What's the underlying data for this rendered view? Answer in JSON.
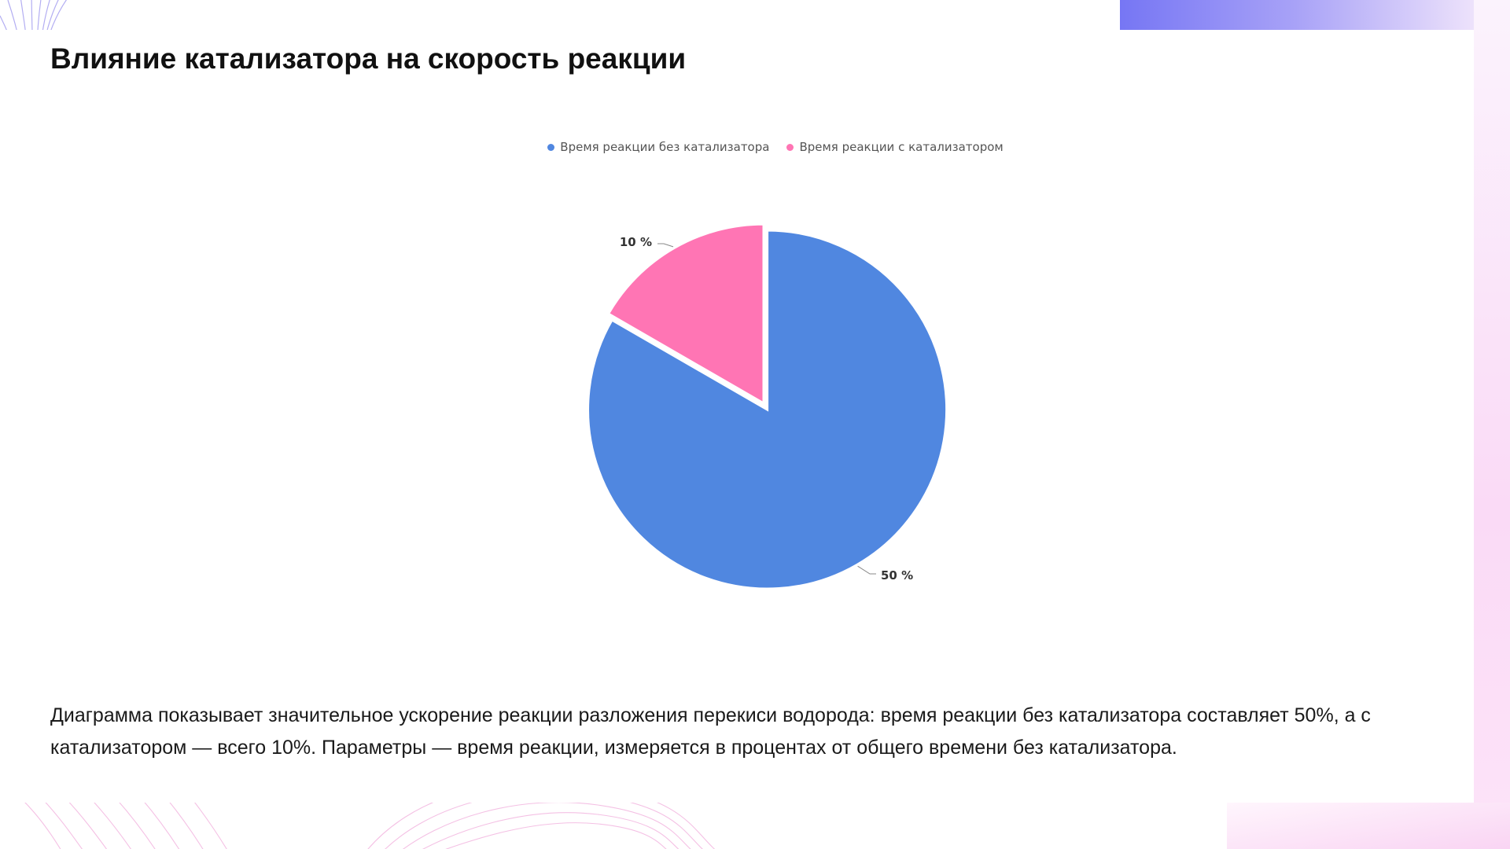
{
  "slide": {
    "title": "Влияние катализатора на скорость реакции",
    "caption": "Диаграмма показывает значительное ускорение реакции разложения перекиси водорода: время реакции без катализатора составляет 50%, а с катализатором — всего 10%. Параметры — время реакции, измеряется в процентах от общего времени без катализатора."
  },
  "colors": {
    "series_without": "#5087e0",
    "series_with": "#ff75b4",
    "accent_gradient_start": "#7b7bf5",
    "accent_gradient_end": "#fce4f7"
  },
  "chart_data": {
    "type": "pie",
    "title": "",
    "legend_position": "top-center",
    "slices": [
      {
        "name": "Время реакции без катализатора",
        "value": 50,
        "label": "50 %"
      },
      {
        "name": "Время реакции с катализатором",
        "value": 10,
        "label": "10 %"
      }
    ]
  }
}
